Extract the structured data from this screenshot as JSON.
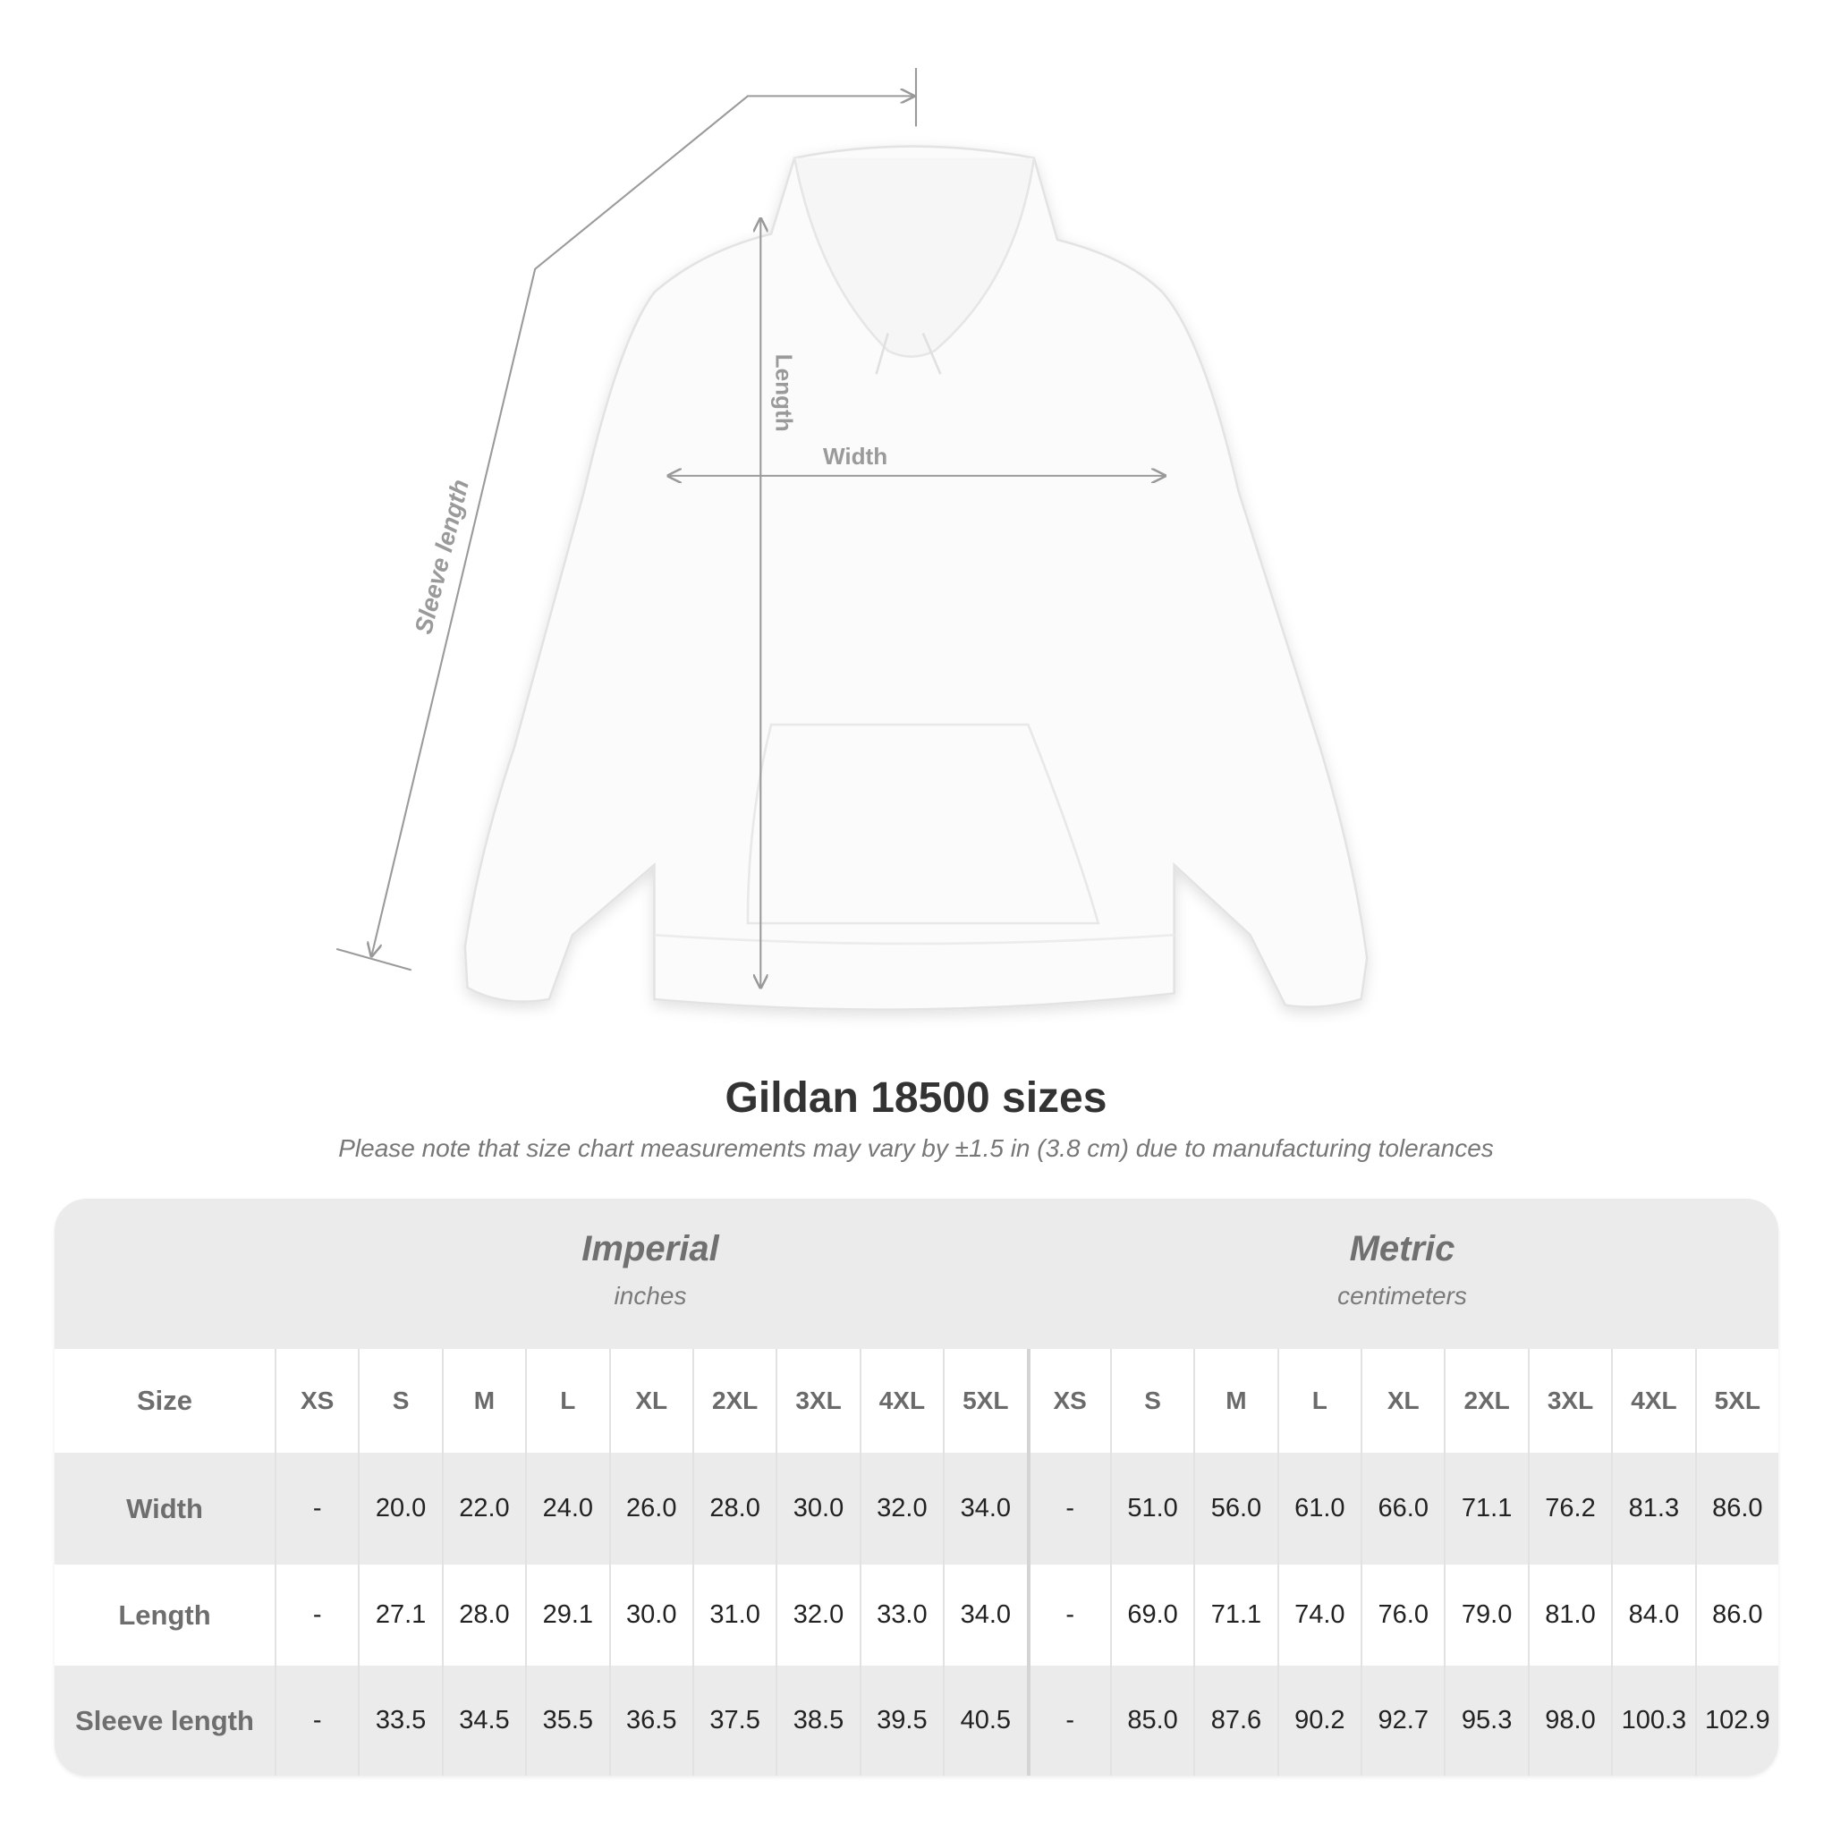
{
  "diagram": {
    "labels": {
      "sleeve": "Sleeve length",
      "length": "Length",
      "width": "Width"
    },
    "garment_color": "#ffffff"
  },
  "title": "Gildan 18500 sizes",
  "note": "Please note that size chart measurements may vary by ±1.5 in (3.8 cm) due to manufacturing tolerances",
  "table": {
    "imperial": {
      "label": "Imperial",
      "unit": "inches"
    },
    "metric": {
      "label": "Metric",
      "unit": "centimeters"
    },
    "size_label": "Size",
    "sizes": [
      "XS",
      "S",
      "M",
      "L",
      "XL",
      "2XL",
      "3XL",
      "4XL",
      "5XL"
    ],
    "rows": [
      {
        "label": "Width",
        "imperial": [
          "-",
          "20.0",
          "22.0",
          "24.0",
          "26.0",
          "28.0",
          "30.0",
          "32.0",
          "34.0"
        ],
        "metric": [
          "-",
          "51.0",
          "56.0",
          "61.0",
          "66.0",
          "71.1",
          "76.2",
          "81.3",
          "86.0"
        ]
      },
      {
        "label": "Length",
        "imperial": [
          "-",
          "27.1",
          "28.0",
          "29.1",
          "30.0",
          "31.0",
          "32.0",
          "33.0",
          "34.0"
        ],
        "metric": [
          "-",
          "69.0",
          "71.1",
          "74.0",
          "76.0",
          "79.0",
          "81.0",
          "84.0",
          "86.0"
        ]
      },
      {
        "label": "Sleeve length",
        "imperial": [
          "-",
          "33.5",
          "34.5",
          "35.5",
          "36.5",
          "37.5",
          "38.5",
          "39.5",
          "40.5"
        ],
        "metric": [
          "-",
          "85.0",
          "87.6",
          "90.2",
          "92.7",
          "95.3",
          "98.0",
          "100.3",
          "102.9"
        ]
      }
    ],
    "colors": {
      "band": "#ebebeb",
      "white_row": "#ffffff"
    }
  }
}
